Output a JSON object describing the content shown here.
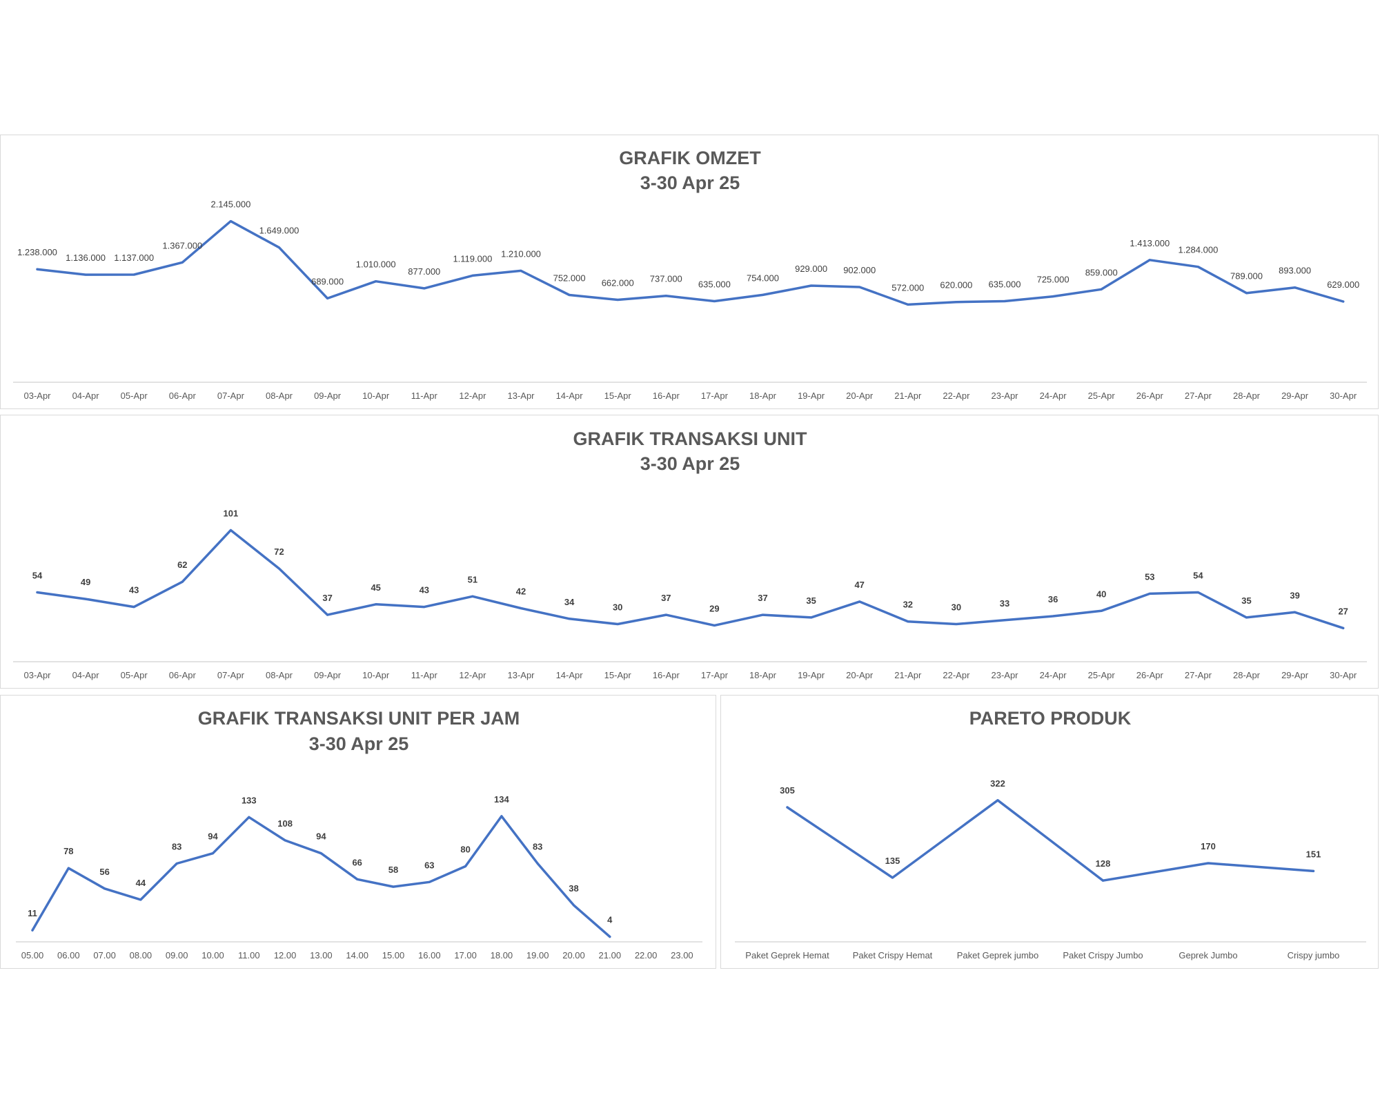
{
  "chart_data": [
    {
      "type": "line",
      "title": "GRAFIK OMZET",
      "subtitle": "3-30 Apr 25",
      "categories": [
        "03-Apr",
        "04-Apr",
        "05-Apr",
        "06-Apr",
        "07-Apr",
        "08-Apr",
        "09-Apr",
        "10-Apr",
        "11-Apr",
        "12-Apr",
        "13-Apr",
        "14-Apr",
        "15-Apr",
        "16-Apr",
        "17-Apr",
        "18-Apr",
        "19-Apr",
        "20-Apr",
        "21-Apr",
        "22-Apr",
        "23-Apr",
        "24-Apr",
        "25-Apr",
        "26-Apr",
        "27-Apr",
        "28-Apr",
        "29-Apr",
        "30-Apr"
      ],
      "values": [
        1238000,
        1136000,
        1137000,
        1367000,
        2145000,
        1649000,
        689000,
        1010000,
        877000,
        1119000,
        1210000,
        752000,
        662000,
        737000,
        635000,
        754000,
        929000,
        902000,
        572000,
        620000,
        635000,
        725000,
        859000,
        1413000,
        1284000,
        789000,
        893000,
        629000
      ],
      "labels": [
        "1.238.000",
        "1.136.000",
        "1.137.000",
        "1.367.000",
        "2.145.000",
        "1.649.000",
        "689.000",
        "1.010.000",
        "877.000",
        "1.119.000",
        "1.210.000",
        "752.000",
        "662.000",
        "737.000",
        "635.000",
        "754.000",
        "929.000",
        "902.000",
        "572.000",
        "620.000",
        "635.000",
        "725.000",
        "859.000",
        "1.413.000",
        "1.284.000",
        "789.000",
        "893.000",
        "629.000"
      ],
      "ylim": [
        -400000,
        2400000
      ],
      "grid": false,
      "color": "#4472c4"
    },
    {
      "type": "line",
      "title": "GRAFIK TRANSAKSI UNIT",
      "subtitle": "3-30 Apr 25",
      "categories": [
        "03-Apr",
        "04-Apr",
        "05-Apr",
        "06-Apr",
        "07-Apr",
        "08-Apr",
        "09-Apr",
        "10-Apr",
        "11-Apr",
        "12-Apr",
        "13-Apr",
        "14-Apr",
        "15-Apr",
        "16-Apr",
        "17-Apr",
        "18-Apr",
        "19-Apr",
        "20-Apr",
        "21-Apr",
        "22-Apr",
        "23-Apr",
        "24-Apr",
        "25-Apr",
        "26-Apr",
        "27-Apr",
        "28-Apr",
        "29-Apr",
        "30-Apr"
      ],
      "values": [
        54,
        49,
        43,
        62,
        101,
        72,
        37,
        45,
        43,
        51,
        42,
        34,
        30,
        37,
        29,
        37,
        35,
        47,
        32,
        30,
        33,
        36,
        40,
        53,
        54,
        35,
        39,
        27
      ],
      "ylim": [
        0,
        120
      ],
      "grid": false,
      "color": "#4472c4"
    },
    {
      "type": "line",
      "title": "GRAFIK TRANSAKSI UNIT PER JAM",
      "subtitle": "3-30 Apr 25",
      "categories": [
        "05.00",
        "06.00",
        "07.00",
        "08.00",
        "09.00",
        "10.00",
        "11.00",
        "12.00",
        "13.00",
        "14.00",
        "15.00",
        "16.00",
        "17.00",
        "18.00",
        "19.00",
        "20.00",
        "21.00",
        "22.00",
        "23.00"
      ],
      "values": [
        11,
        78,
        56,
        44,
        83,
        94,
        133,
        108,
        94,
        66,
        58,
        63,
        80,
        134,
        83,
        38,
        4,
        null,
        null
      ],
      "ylim": [
        0,
        160
      ],
      "grid": false,
      "color": "#4472c4"
    },
    {
      "type": "line",
      "title": "PARETO PRODUK",
      "subtitle": "",
      "categories": [
        "Paket Geprek Hemat",
        "Paket Crispy Hemat",
        "Paket Geprek jumbo",
        "Paket Crispy Jumbo",
        "Geprek Jumbo",
        "Crispy jumbo"
      ],
      "values": [
        305,
        135,
        322,
        128,
        170,
        151
      ],
      "ylim": [
        0,
        350
      ],
      "grid": false,
      "color": "#4472c4"
    }
  ]
}
